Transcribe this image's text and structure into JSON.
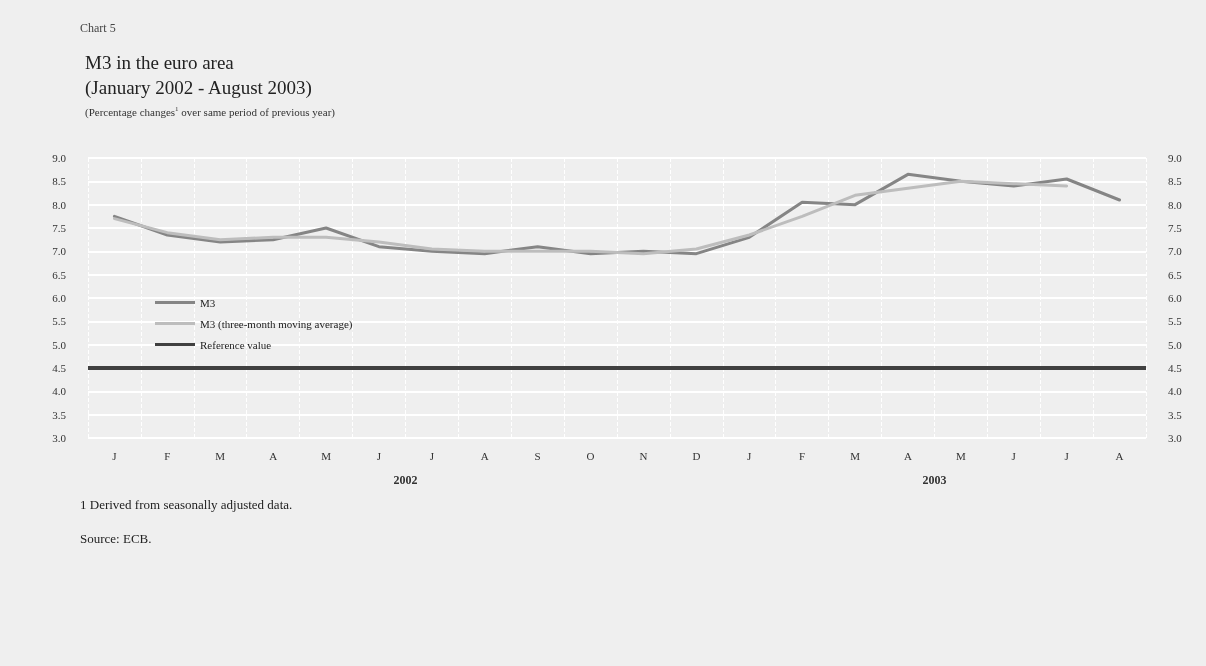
{
  "chart_data": {
    "type": "line",
    "title": "M3 in the euro area\n(January 2002 - August 2003)",
    "subtitle": "(Percentage changes$^{1}$ over same period of previous year)",
    "categories": [
      "J",
      "F",
      "M",
      "A",
      "M",
      "J",
      "J",
      "A",
      "S",
      "O",
      "N",
      "D",
      "J",
      "F",
      "M",
      "A",
      "M",
      "J",
      "J",
      "A"
    ],
    "series": [
      {
        "name": "M3",
        "color": "#858585",
        "values": [
          7.75,
          7.35,
          7.2,
          7.25,
          7.5,
          7.1,
          7.0,
          6.95,
          7.1,
          6.95,
          7.0,
          6.95,
          7.3,
          8.05,
          8.0,
          8.65,
          8.5,
          8.4,
          8.55,
          8.1
        ]
      },
      {
        "name": "M3 (three-month moving average)",
        "color": "#bdbdbd",
        "values": [
          7.7,
          7.4,
          7.25,
          7.3,
          7.3,
          7.2,
          7.05,
          7.0,
          7.0,
          7.0,
          6.95,
          7.05,
          7.35,
          7.75,
          8.2,
          8.35,
          8.5,
          8.45,
          8.4,
          null
        ]
      }
    ],
    "ref_lines": [
      {
        "axis": "y",
        "value": 4.5,
        "label": "Reference value",
        "color": "#404040"
      }
    ],
    "ylim": [
      3,
      9
    ],
    "yticks": [
      {
        "value": 3,
        "label": "3.0"
      },
      {
        "value": 3.5,
        "label": "3.5"
      },
      {
        "value": 4,
        "label": "4.0"
      },
      {
        "value": 4.5,
        "label": "4.5"
      },
      {
        "value": 5,
        "label": "5.0"
      },
      {
        "value": 5.5,
        "label": "5.5"
      },
      {
        "value": 6,
        "label": "6.0"
      },
      {
        "value": 6.5,
        "label": "6.5"
      },
      {
        "value": 7,
        "label": "7.0"
      },
      {
        "value": 7.5,
        "label": "7.5"
      },
      {
        "value": 8,
        "label": "8.0"
      },
      {
        "value": 8.5,
        "label": "8.5"
      },
      {
        "value": 9,
        "label": "9.0"
      }
    ],
    "y2lim": [
      3,
      9
    ],
    "y2ticks": [
      {
        "value": 3,
        "label": "3.0"
      },
      {
        "value": 3.5,
        "label": "3.5"
      },
      {
        "value": 4,
        "label": "4.0"
      },
      {
        "value": 4.5,
        "label": "4.5"
      },
      {
        "value": 5,
        "label": "5.0"
      },
      {
        "value": 5.5,
        "label": "5.5"
      },
      {
        "value": 6,
        "label": "6.0"
      },
      {
        "value": 6.5,
        "label": "6.5"
      },
      {
        "value": 7,
        "label": "7.0"
      },
      {
        "value": 7.5,
        "label": "7.5"
      },
      {
        "value": 8,
        "label": "8.0"
      },
      {
        "value": 8.5,
        "label": "8.5"
      },
      {
        "value": 9,
        "label": "9.0"
      }
    ],
    "annotations": [
      "Chart 5",
      "2002",
      "2003",
      "1 Derived from seasonally adjusted data.",
      "Source: ECB."
    ],
    "grid": true,
    "legend": "left",
    "marker": "none",
    "line_style": "solid"
  }
}
